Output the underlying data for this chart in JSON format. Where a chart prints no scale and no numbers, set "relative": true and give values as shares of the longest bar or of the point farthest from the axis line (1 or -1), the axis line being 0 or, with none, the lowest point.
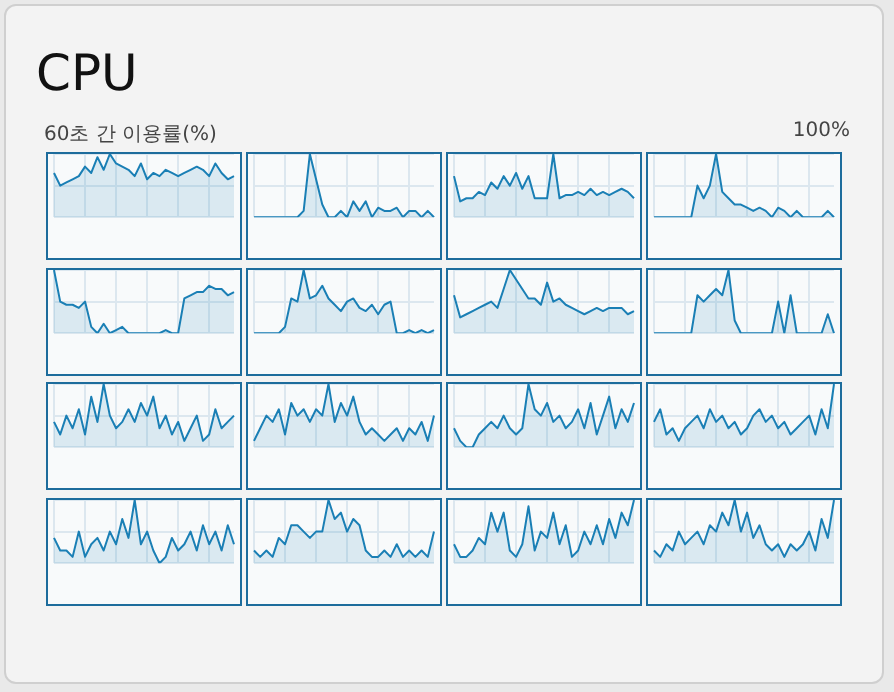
{
  "chart_data": [
    {
      "type": "other",
      "title": "CPU",
      "annotations": [
        "60초 간 이용률(%)",
        "100%"
      ]
    },
    {
      "type": "area",
      "relative": true,
      "grid": true,
      "legend": false,
      "categories": [
        null,
        null,
        null,
        null,
        null,
        null,
        null,
        null,
        null,
        null,
        null,
        null,
        null,
        null,
        null,
        null,
        null,
        null,
        null,
        null,
        null,
        null,
        null,
        null,
        null,
        null,
        null,
        null,
        null,
        null
      ],
      "series": [
        {
          "color": "#1a7fb5",
          "values": [
            0.7,
            0.5,
            0.55,
            0.6,
            0.65,
            0.8,
            0.7,
            0.95,
            0.75,
            1,
            0.85,
            0.8,
            0.75,
            0.65,
            0.85,
            0.6,
            0.7,
            0.65,
            0.75,
            0.7,
            0.65,
            0.7,
            0.75,
            0.8,
            0.75,
            0.65,
            0.85,
            0.7,
            0.6,
            0.65
          ]
        }
      ]
    },
    {
      "type": "area",
      "relative": true,
      "grid": true,
      "legend": false,
      "categories": [
        null,
        null,
        null,
        null,
        null,
        null,
        null,
        null,
        null,
        null,
        null,
        null,
        null,
        null,
        null,
        null,
        null,
        null,
        null,
        null,
        null,
        null,
        null,
        null,
        null,
        null,
        null,
        null,
        null,
        null
      ],
      "series": [
        {
          "color": "#1a7fb5",
          "values": [
            0,
            0,
            0,
            0,
            0,
            0,
            0,
            0,
            0.1,
            1,
            0.6,
            0.2,
            0,
            0,
            0.1,
            0,
            0.25,
            0.1,
            0.25,
            0,
            0.15,
            0.1,
            0.1,
            0.15,
            0,
            0.1,
            0.1,
            0,
            0.1,
            0
          ]
        }
      ]
    },
    {
      "type": "area",
      "relative": true,
      "grid": true,
      "legend": false,
      "categories": [
        null,
        null,
        null,
        null,
        null,
        null,
        null,
        null,
        null,
        null,
        null,
        null,
        null,
        null,
        null,
        null,
        null,
        null,
        null,
        null,
        null,
        null,
        null,
        null,
        null,
        null,
        null,
        null,
        null,
        null
      ],
      "series": [
        {
          "color": "#1a7fb5",
          "values": [
            0.65,
            0.25,
            0.3,
            0.3,
            0.4,
            0.35,
            0.55,
            0.45,
            0.65,
            0.5,
            0.7,
            0.45,
            0.65,
            0.3,
            0.3,
            0.3,
            1,
            0.3,
            0.35,
            0.35,
            0.4,
            0.35,
            0.45,
            0.35,
            0.4,
            0.35,
            0.4,
            0.45,
            0.4,
            0.3
          ]
        }
      ]
    },
    {
      "type": "area",
      "relative": true,
      "grid": true,
      "legend": false,
      "categories": [
        null,
        null,
        null,
        null,
        null,
        null,
        null,
        null,
        null,
        null,
        null,
        null,
        null,
        null,
        null,
        null,
        null,
        null,
        null,
        null,
        null,
        null,
        null,
        null,
        null,
        null,
        null,
        null,
        null,
        null
      ],
      "series": [
        {
          "color": "#1a7fb5",
          "values": [
            0,
            0,
            0,
            0,
            0,
            0,
            0,
            0.5,
            0.3,
            0.5,
            1,
            0.4,
            0.3,
            0.2,
            0.2,
            0.15,
            0.1,
            0.15,
            0.1,
            0,
            0.15,
            0.1,
            0,
            0.1,
            0,
            0,
            0,
            0,
            0.1,
            0
          ]
        }
      ]
    },
    {
      "type": "area",
      "relative": true,
      "grid": true,
      "legend": false,
      "categories": [
        null,
        null,
        null,
        null,
        null,
        null,
        null,
        null,
        null,
        null,
        null,
        null,
        null,
        null,
        null,
        null,
        null,
        null,
        null,
        null,
        null,
        null,
        null,
        null,
        null,
        null,
        null,
        null,
        null,
        null
      ],
      "series": [
        {
          "color": "#1a7fb5",
          "values": [
            1,
            0.5,
            0.45,
            0.45,
            0.4,
            0.5,
            0.1,
            0,
            0.15,
            0,
            0.05,
            0.1,
            0,
            0,
            0,
            0,
            0,
            0,
            0.05,
            0,
            0,
            0.55,
            0.6,
            0.65,
            0.65,
            0.75,
            0.7,
            0.7,
            0.6,
            0.65
          ]
        }
      ]
    },
    {
      "type": "area",
      "relative": true,
      "grid": true,
      "legend": false,
      "categories": [
        null,
        null,
        null,
        null,
        null,
        null,
        null,
        null,
        null,
        null,
        null,
        null,
        null,
        null,
        null,
        null,
        null,
        null,
        null,
        null,
        null,
        null,
        null,
        null,
        null,
        null,
        null,
        null,
        null,
        null
      ],
      "series": [
        {
          "color": "#1a7fb5",
          "values": [
            0,
            0,
            0,
            0,
            0,
            0.1,
            0.55,
            0.5,
            1,
            0.55,
            0.6,
            0.75,
            0.55,
            0.45,
            0.35,
            0.5,
            0.55,
            0.4,
            0.35,
            0.45,
            0.3,
            0.45,
            0.5,
            0,
            0,
            0.05,
            0,
            0.05,
            0,
            0.05
          ]
        }
      ]
    },
    {
      "type": "area",
      "relative": true,
      "grid": true,
      "legend": false,
      "categories": [
        null,
        null,
        null,
        null,
        null,
        null,
        null,
        null,
        null,
        null,
        null,
        null,
        null,
        null,
        null,
        null,
        null,
        null,
        null,
        null,
        null,
        null,
        null,
        null,
        null,
        null,
        null,
        null,
        null,
        null
      ],
      "series": [
        {
          "color": "#1a7fb5",
          "values": [
            0.6,
            0.25,
            0.3,
            0.35,
            0.4,
            0.45,
            0.5,
            0.4,
            0.7,
            1,
            0.85,
            0.7,
            0.55,
            0.55,
            0.45,
            0.8,
            0.5,
            0.55,
            0.45,
            0.4,
            0.35,
            0.3,
            0.35,
            0.4,
            0.35,
            0.4,
            0.4,
            0.4,
            0.3,
            0.35
          ]
        }
      ]
    },
    {
      "type": "area",
      "relative": true,
      "grid": true,
      "legend": false,
      "categories": [
        null,
        null,
        null,
        null,
        null,
        null,
        null,
        null,
        null,
        null,
        null,
        null,
        null,
        null,
        null,
        null,
        null,
        null,
        null,
        null,
        null,
        null,
        null,
        null,
        null,
        null,
        null,
        null,
        null,
        null
      ],
      "series": [
        {
          "color": "#1a7fb5",
          "values": [
            0,
            0,
            0,
            0,
            0,
            0,
            0,
            0.6,
            0.5,
            0.6,
            0.7,
            0.6,
            1,
            0.2,
            0,
            0,
            0,
            0,
            0,
            0,
            0.5,
            0,
            0.6,
            0,
            0,
            0,
            0,
            0,
            0.3,
            0
          ]
        }
      ]
    },
    {
      "type": "area",
      "relative": true,
      "grid": true,
      "legend": false,
      "categories": [
        null,
        null,
        null,
        null,
        null,
        null,
        null,
        null,
        null,
        null,
        null,
        null,
        null,
        null,
        null,
        null,
        null,
        null,
        null,
        null,
        null,
        null,
        null,
        null,
        null,
        null,
        null,
        null,
        null,
        null
      ],
      "series": [
        {
          "color": "#1a7fb5",
          "values": [
            0.4,
            0.2,
            0.5,
            0.3,
            0.6,
            0.2,
            0.8,
            0.4,
            1,
            0.5,
            0.3,
            0.4,
            0.6,
            0.4,
            0.7,
            0.5,
            0.8,
            0.3,
            0.5,
            0.2,
            0.4,
            0.1,
            0.3,
            0.5,
            0.1,
            0.2,
            0.6,
            0.3,
            0.4,
            0.5
          ]
        }
      ]
    },
    {
      "type": "area",
      "relative": true,
      "grid": true,
      "legend": false,
      "categories": [
        null,
        null,
        null,
        null,
        null,
        null,
        null,
        null,
        null,
        null,
        null,
        null,
        null,
        null,
        null,
        null,
        null,
        null,
        null,
        null,
        null,
        null,
        null,
        null,
        null,
        null,
        null,
        null,
        null,
        null
      ],
      "series": [
        {
          "color": "#1a7fb5",
          "values": [
            0.1,
            0.3,
            0.5,
            0.4,
            0.6,
            0.2,
            0.7,
            0.5,
            0.6,
            0.4,
            0.6,
            0.5,
            1,
            0.4,
            0.7,
            0.5,
            0.8,
            0.4,
            0.2,
            0.3,
            0.2,
            0.1,
            0.2,
            0.3,
            0.1,
            0.3,
            0.2,
            0.4,
            0.1,
            0.5
          ]
        }
      ]
    },
    {
      "type": "area",
      "relative": true,
      "grid": true,
      "legend": false,
      "categories": [
        null,
        null,
        null,
        null,
        null,
        null,
        null,
        null,
        null,
        null,
        null,
        null,
        null,
        null,
        null,
        null,
        null,
        null,
        null,
        null,
        null,
        null,
        null,
        null,
        null,
        null,
        null,
        null,
        null,
        null
      ],
      "series": [
        {
          "color": "#1a7fb5",
          "values": [
            0.3,
            0.1,
            0,
            0,
            0.2,
            0.3,
            0.4,
            0.3,
            0.5,
            0.3,
            0.2,
            0.3,
            1,
            0.6,
            0.5,
            0.7,
            0.4,
            0.5,
            0.3,
            0.4,
            0.6,
            0.3,
            0.7,
            0.2,
            0.5,
            0.8,
            0.3,
            0.6,
            0.4,
            0.7
          ]
        }
      ]
    },
    {
      "type": "area",
      "relative": true,
      "grid": true,
      "legend": false,
      "categories": [
        null,
        null,
        null,
        null,
        null,
        null,
        null,
        null,
        null,
        null,
        null,
        null,
        null,
        null,
        null,
        null,
        null,
        null,
        null,
        null,
        null,
        null,
        null,
        null,
        null,
        null,
        null,
        null,
        null,
        null
      ],
      "series": [
        {
          "color": "#1a7fb5",
          "values": [
            0.4,
            0.6,
            0.2,
            0.3,
            0.1,
            0.3,
            0.4,
            0.5,
            0.3,
            0.6,
            0.4,
            0.5,
            0.3,
            0.4,
            0.2,
            0.3,
            0.5,
            0.6,
            0.4,
            0.5,
            0.3,
            0.4,
            0.2,
            0.3,
            0.4,
            0.5,
            0.2,
            0.6,
            0.3,
            1
          ]
        }
      ]
    },
    {
      "type": "area",
      "relative": true,
      "grid": true,
      "legend": false,
      "categories": [
        null,
        null,
        null,
        null,
        null,
        null,
        null,
        null,
        null,
        null,
        null,
        null,
        null,
        null,
        null,
        null,
        null,
        null,
        null,
        null,
        null,
        null,
        null,
        null,
        null,
        null,
        null,
        null,
        null,
        null
      ],
      "series": [
        {
          "color": "#1a7fb5",
          "values": [
            0.4,
            0.2,
            0.2,
            0.1,
            0.5,
            0.1,
            0.3,
            0.4,
            0.2,
            0.5,
            0.3,
            0.7,
            0.4,
            1,
            0.3,
            0.5,
            0.2,
            0,
            0.1,
            0.4,
            0.2,
            0.3,
            0.5,
            0.2,
            0.6,
            0.3,
            0.5,
            0.2,
            0.6,
            0.3
          ]
        }
      ]
    },
    {
      "type": "area",
      "relative": true,
      "grid": true,
      "legend": false,
      "categories": [
        null,
        null,
        null,
        null,
        null,
        null,
        null,
        null,
        null,
        null,
        null,
        null,
        null,
        null,
        null,
        null,
        null,
        null,
        null,
        null,
        null,
        null,
        null,
        null,
        null,
        null,
        null,
        null,
        null,
        null
      ],
      "series": [
        {
          "color": "#1a7fb5",
          "values": [
            0.2,
            0.1,
            0.2,
            0.1,
            0.4,
            0.3,
            0.6,
            0.6,
            0.5,
            0.4,
            0.5,
            0.5,
            1,
            0.7,
            0.8,
            0.5,
            0.7,
            0.6,
            0.2,
            0.1,
            0.1,
            0.2,
            0.1,
            0.3,
            0.1,
            0.2,
            0.1,
            0.2,
            0.1,
            0.5
          ]
        }
      ]
    },
    {
      "type": "area",
      "relative": true,
      "grid": true,
      "legend": false,
      "categories": [
        null,
        null,
        null,
        null,
        null,
        null,
        null,
        null,
        null,
        null,
        null,
        null,
        null,
        null,
        null,
        null,
        null,
        null,
        null,
        null,
        null,
        null,
        null,
        null,
        null,
        null,
        null,
        null,
        null,
        null
      ],
      "series": [
        {
          "color": "#1a7fb5",
          "values": [
            0.3,
            0.1,
            0.1,
            0.2,
            0.4,
            0.3,
            0.8,
            0.5,
            0.8,
            0.2,
            0.1,
            0.3,
            0.9,
            0.2,
            0.5,
            0.4,
            0.8,
            0.3,
            0.6,
            0.1,
            0.2,
            0.5,
            0.3,
            0.6,
            0.3,
            0.7,
            0.4,
            0.8,
            0.6,
            1
          ]
        }
      ]
    },
    {
      "type": "area",
      "relative": true,
      "grid": true,
      "legend": false,
      "categories": [
        null,
        null,
        null,
        null,
        null,
        null,
        null,
        null,
        null,
        null,
        null,
        null,
        null,
        null,
        null,
        null,
        null,
        null,
        null,
        null,
        null,
        null,
        null,
        null,
        null,
        null,
        null,
        null,
        null,
        null
      ],
      "series": [
        {
          "color": "#1a7fb5",
          "values": [
            0.2,
            0.1,
            0.3,
            0.2,
            0.5,
            0.3,
            0.4,
            0.5,
            0.3,
            0.6,
            0.5,
            0.8,
            0.6,
            1,
            0.5,
            0.8,
            0.4,
            0.6,
            0.3,
            0.2,
            0.3,
            0.1,
            0.3,
            0.2,
            0.3,
            0.5,
            0.2,
            0.7,
            0.4,
            1
          ]
        }
      ]
    }
  ]
}
